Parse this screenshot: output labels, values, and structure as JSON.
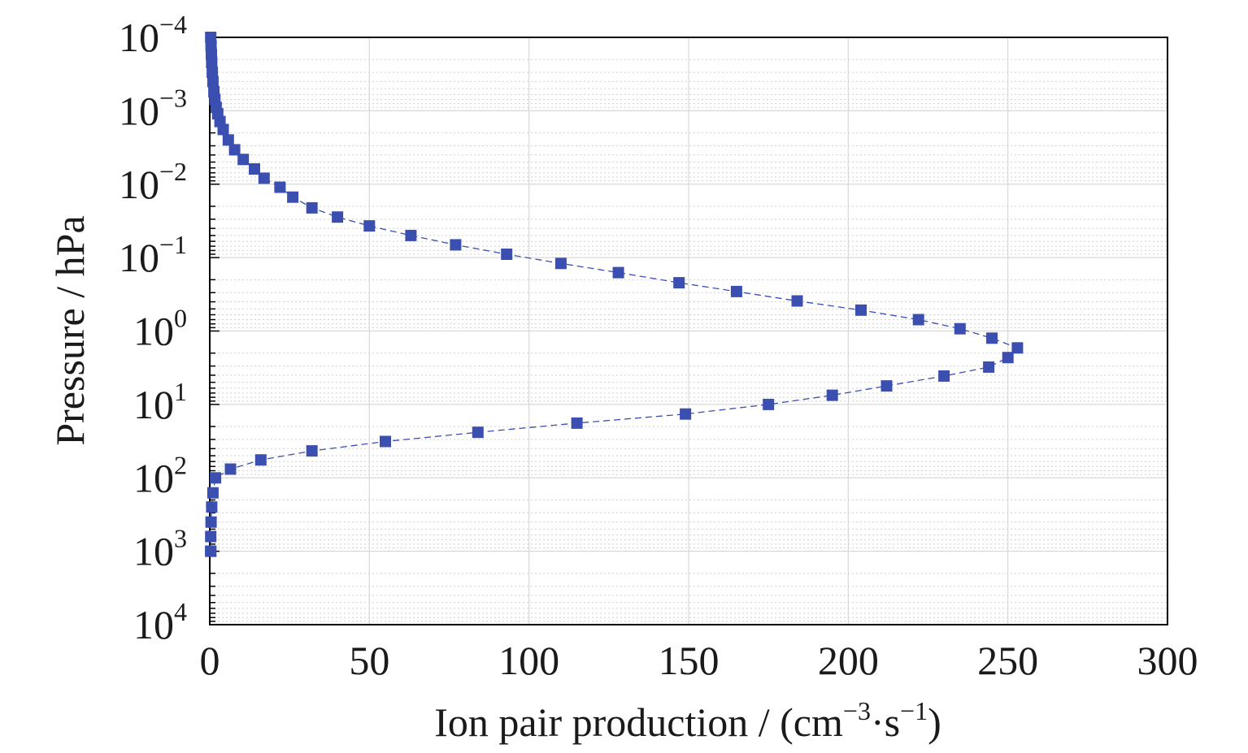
{
  "chart_data": {
    "type": "scatter",
    "xlabel": "Ion pair production / (cm",
    "xlabel_exp1": "−3",
    "xlabel_mid": "·s",
    "xlabel_exp2": "−1",
    "xlabel_end": ")",
    "ylabel": "Pressure / hPa",
    "xlim": [
      0,
      300
    ],
    "x_ticks": [
      0,
      50,
      100,
      150,
      200,
      250,
      300
    ],
    "x_tick_labels": [
      "0",
      "50",
      "100",
      "150",
      "200",
      "250",
      "300"
    ],
    "ylim": [
      0.0001,
      10000
    ],
    "y_scale": "log",
    "y_inverted": true,
    "y_ticks": [
      {
        "value": 0.0001,
        "base": "10",
        "exp": "−4"
      },
      {
        "value": 0.001,
        "base": "10",
        "exp": "−3"
      },
      {
        "value": 0.01,
        "base": "10",
        "exp": "−2"
      },
      {
        "value": 0.1,
        "base": "10",
        "exp": "−1"
      },
      {
        "value": 1,
        "base": "10",
        "exp": "0"
      },
      {
        "value": 10,
        "base": "10",
        "exp": "1"
      },
      {
        "value": 100,
        "base": "10",
        "exp": "2"
      },
      {
        "value": 1000,
        "base": "10",
        "exp": "3"
      },
      {
        "value": 10000,
        "base": "10",
        "exp": "4"
      }
    ],
    "grid": true,
    "marker": "square",
    "line_style": "dashed",
    "color": "#3b4fb0",
    "series": [
      {
        "x": [
          0.3,
          0.4,
          0.5,
          0.6,
          0.8,
          1.0,
          1.3,
          1.6,
          2.0,
          2.5,
          3.2,
          4.2,
          5.8,
          7.8,
          10.5,
          14,
          17,
          22,
          26,
          32,
          40,
          50,
          63,
          77,
          93,
          110,
          128,
          147,
          165,
          184,
          204,
          222,
          235,
          245,
          253,
          250,
          244,
          230,
          212,
          195,
          175,
          149,
          115,
          84,
          55,
          32,
          16,
          6.5,
          1.8,
          1.0,
          0.6,
          0.4,
          0.3,
          0.3,
          0.3
        ],
        "y": [
          0.0001,
          0.00013,
          0.00017,
          0.00022,
          0.0003,
          0.0004,
          0.00055,
          0.0007,
          0.0009,
          0.0011,
          0.0014,
          0.0018,
          0.0025,
          0.0034,
          0.0046,
          0.0062,
          0.0083,
          0.011,
          0.015,
          0.021,
          0.028,
          0.037,
          0.05,
          0.067,
          0.09,
          0.12,
          0.16,
          0.22,
          0.29,
          0.39,
          0.52,
          0.7,
          0.93,
          1.25,
          1.7,
          2.3,
          3.1,
          4.1,
          5.6,
          7.5,
          10,
          13.5,
          18,
          24,
          32,
          43,
          57,
          76,
          100,
          160,
          250,
          400,
          630,
          1000,
          1000
        ]
      }
    ]
  }
}
